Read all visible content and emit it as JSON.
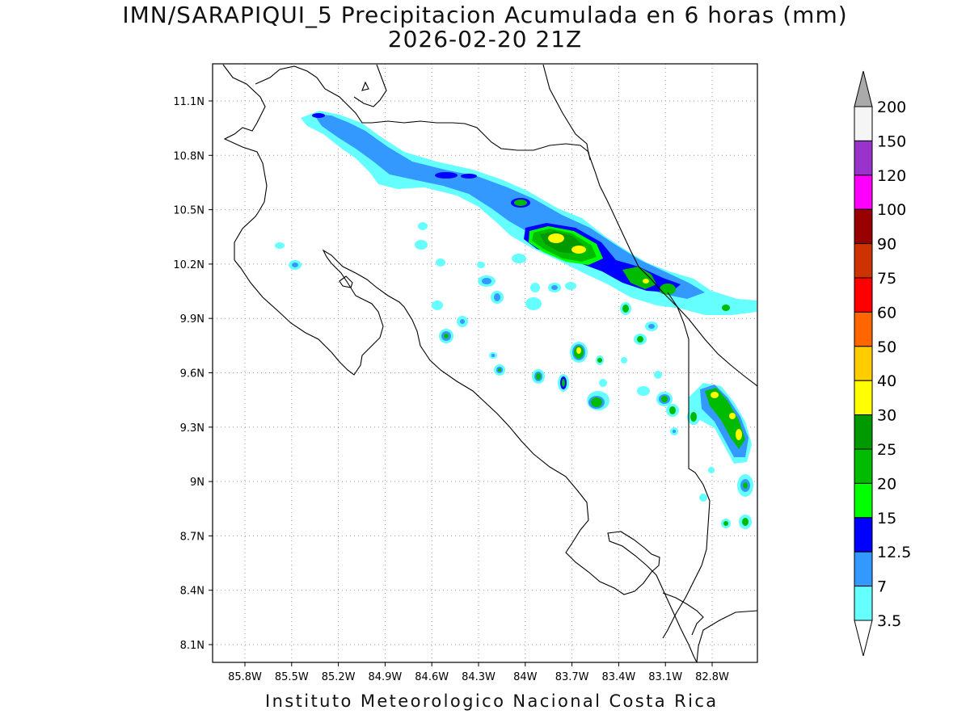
{
  "title": {
    "line1": "IMN/SARAPIQUI_5 Precipitacion Acumulada en 6 horas (mm)",
    "line2": "2026-02-20 21Z"
  },
  "map": {
    "lat_ticks": [
      "11.1N",
      "10.8N",
      "10.5N",
      "10.2N",
      "9.9N",
      "9.6N",
      "9.3N",
      "9N",
      "8.7N",
      "8.4N",
      "8.1N"
    ],
    "lon_ticks": [
      "85.8W",
      "85.5W",
      "85.2W",
      "84.9W",
      "84.6W",
      "84.3W",
      "84W",
      "83.7W",
      "83.4W",
      "83.1W",
      "82.8W"
    ]
  },
  "colorbar": {
    "labels": [
      "200",
      "150",
      "120",
      "100",
      "90",
      "75",
      "60",
      "50",
      "40",
      "30",
      "25",
      "20",
      "15",
      "12.5",
      "7",
      "3.5"
    ],
    "colors": [
      "#f5f5f5",
      "#9933cc",
      "#ff00ff",
      "#990000",
      "#cc3300",
      "#ff0000",
      "#ff6600",
      "#ffcc00",
      "#ffff00",
      "#009900",
      "#00bb00",
      "#00ff00",
      "#0000ff",
      "#3399ff",
      "#66ffff"
    ],
    "over_color": "#aaaaaa",
    "under_color": "#ffffff"
  },
  "footer": "Instituto Meteorologico Nacional Costa Rica"
}
